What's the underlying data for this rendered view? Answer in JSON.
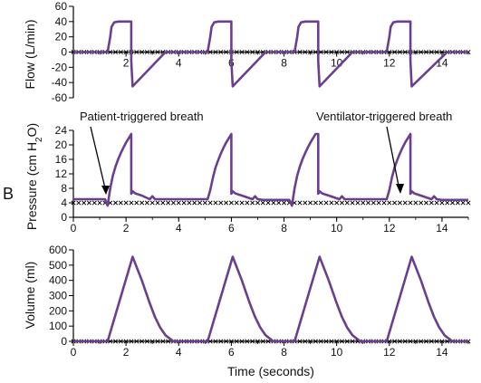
{
  "figure": {
    "panel_letter": "B",
    "x_axis_label": "Time (seconds)",
    "trace_color": "#6B3F8F"
  },
  "chart_data": [
    {
      "type": "line",
      "ylabel": "Flow (L/min)",
      "xlim": [
        0,
        15
      ],
      "ylim": [
        -60,
        60
      ],
      "x_ticks": [
        2,
        4,
        6,
        8,
        10,
        12,
        14
      ],
      "y_ticks": [
        -60,
        -40,
        -20,
        0,
        20,
        40,
        60
      ],
      "series": [
        {
          "x": [
            0,
            1.3,
            1.4,
            1.45,
            1.55,
            1.7,
            2.2,
            2.2,
            2.25,
            3.5,
            5.1,
            5.2,
            5.25,
            5.35,
            5.5,
            6.0,
            6.0,
            6.05,
            7.3,
            8.4,
            8.5,
            8.55,
            8.65,
            8.8,
            9.3,
            9.3,
            9.35,
            10.6,
            11.9,
            12.0,
            12.05,
            12.15,
            12.3,
            12.8,
            12.8,
            12.85,
            14.2,
            15
          ],
          "y": [
            0,
            0,
            20,
            33,
            39,
            40,
            40,
            -12,
            -45,
            0,
            0,
            20,
            33,
            39,
            40,
            40,
            -12,
            -45,
            0,
            0,
            20,
            33,
            39,
            40,
            40,
            -12,
            -45,
            0,
            0,
            20,
            33,
            39,
            40,
            40,
            -12,
            -45,
            0,
            0
          ]
        }
      ]
    },
    {
      "type": "line",
      "ylabel": "Pressure (cm H2O)",
      "xlim": [
        0,
        15
      ],
      "ylim": [
        0,
        24
      ],
      "x_ticks": [
        0,
        2,
        4,
        6,
        8,
        10,
        12,
        14
      ],
      "y_ticks": [
        0,
        4,
        8,
        12,
        16,
        20,
        24
      ],
      "annotations": [
        {
          "text": "Patient-triggered breath",
          "x": 1.3,
          "y": 3.5
        },
        {
          "text": "Ventilator-triggered breath",
          "x": 12.0,
          "y": 5
        }
      ],
      "series": [
        {
          "x": [
            0,
            1.2,
            1.3,
            1.4,
            1.5,
            1.6,
            1.7,
            1.8,
            1.9,
            2.0,
            2.1,
            2.2,
            2.2,
            2.25,
            2.35,
            2.6,
            2.9,
            3.0,
            3.1,
            3.3,
            5.1,
            5.2,
            5.3,
            5.4,
            5.5,
            5.6,
            5.7,
            5.8,
            5.9,
            6.0,
            6.0,
            6.05,
            6.15,
            6.4,
            6.8,
            6.9,
            7.0,
            7.2,
            8.2,
            8.3,
            8.4,
            8.5,
            8.6,
            8.7,
            8.8,
            8.9,
            9.0,
            9.1,
            9.2,
            9.3,
            9.3,
            9.35,
            9.45,
            9.7,
            10.1,
            10.2,
            10.3,
            10.5,
            11.9,
            12.0,
            12.1,
            12.2,
            12.3,
            12.4,
            12.5,
            12.6,
            12.7,
            12.8,
            12.8,
            12.85,
            12.95,
            13.2,
            13.6,
            13.7,
            13.8,
            14.0,
            15
          ],
          "y": [
            5,
            5,
            3.2,
            8,
            11.5,
            14,
            16,
            17.7,
            19.2,
            20.6,
            21.8,
            23,
            6.5,
            7.2,
            6.6,
            6,
            5,
            5.8,
            5,
            5,
            5,
            7.5,
            11,
            13.8,
            15.8,
            17.6,
            19.2,
            20.6,
            21.8,
            23,
            6.5,
            7.2,
            6.6,
            6,
            5,
            5.8,
            5,
            4.8,
            4.8,
            3.2,
            8,
            11.5,
            14,
            16,
            17.7,
            19.2,
            20.6,
            21.8,
            23,
            23,
            6.5,
            7.2,
            6.6,
            6,
            5,
            5.8,
            5,
            5,
            5,
            7.5,
            11,
            13.8,
            15.8,
            17.6,
            19.2,
            20.6,
            21.8,
            23,
            6.5,
            7.2,
            6.6,
            6,
            5,
            5.8,
            5,
            4.8,
            4.8
          ]
        }
      ]
    },
    {
      "type": "line",
      "ylabel": "Volume (ml)",
      "xlabel": "Time (seconds)",
      "xlim": [
        0,
        15
      ],
      "ylim": [
        0,
        600
      ],
      "x_ticks": [
        0,
        2,
        4,
        6,
        8,
        10,
        12,
        14
      ],
      "y_ticks": [
        0,
        100,
        200,
        300,
        400,
        500,
        600
      ],
      "series": [
        {
          "x": [
            0,
            1.3,
            2.25,
            2.6,
            2.9,
            3.1,
            3.3,
            3.5,
            3.8,
            5.1,
            6.05,
            6.4,
            6.7,
            6.9,
            7.1,
            7.3,
            7.6,
            8.4,
            9.35,
            9.7,
            10.0,
            10.2,
            10.4,
            10.6,
            10.9,
            11.9,
            12.85,
            13.2,
            13.5,
            13.7,
            13.9,
            14.1,
            14.4,
            15
          ],
          "y": [
            0,
            0,
            555,
            400,
            250,
            160,
            90,
            40,
            0,
            0,
            555,
            400,
            250,
            160,
            90,
            40,
            0,
            0,
            555,
            400,
            250,
            160,
            90,
            40,
            0,
            0,
            555,
            400,
            250,
            160,
            90,
            40,
            0,
            0
          ]
        }
      ]
    }
  ]
}
